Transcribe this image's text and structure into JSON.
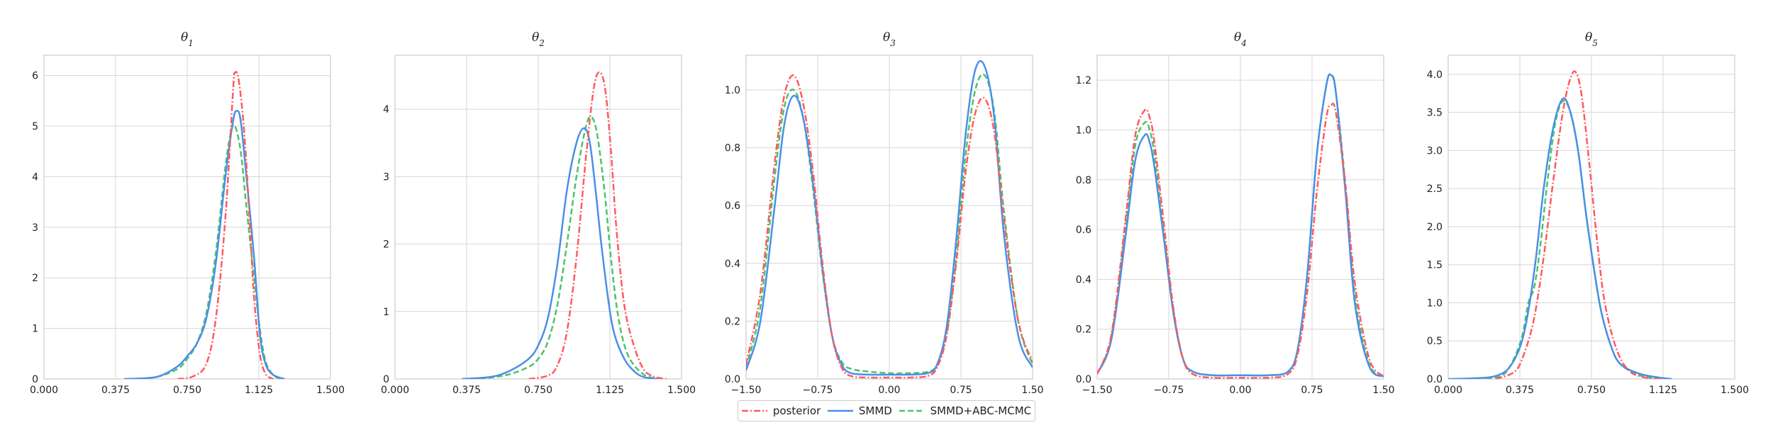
{
  "chart_data": [
    {
      "type": "line",
      "title": "θ1",
      "xlim": [
        0.0,
        1.5
      ],
      "ylim": [
        0,
        6.4
      ],
      "xticks": [
        "0.000",
        "0.375",
        "0.750",
        "1.125",
        "1.500"
      ],
      "xtick_values": [
        0,
        0.375,
        0.75,
        1.125,
        1.5
      ],
      "yticks": [
        "0",
        "1",
        "2",
        "3",
        "4",
        "5",
        "6"
      ],
      "ytick_values": [
        0,
        1,
        2,
        3,
        4,
        5,
        6
      ],
      "grid": true,
      "series": [
        {
          "name": "posterior",
          "x": [
            0.7,
            0.78,
            0.85,
            0.9,
            0.95,
            0.99,
            1.0,
            1.02,
            1.05,
            1.08,
            1.1,
            1.13,
            1.16,
            1.2
          ],
          "y": [
            0,
            0.05,
            0.3,
            1.2,
            3.2,
            5.7,
            6.05,
            5.9,
            4.8,
            2.9,
            1.6,
            0.5,
            0.1,
            0
          ]
        },
        {
          "name": "SMMD",
          "x": [
            0.42,
            0.5,
            0.6,
            0.7,
            0.75,
            0.8,
            0.85,
            0.9,
            0.95,
            0.99,
            1.01,
            1.03,
            1.06,
            1.1,
            1.13,
            1.16,
            1.2,
            1.26
          ],
          "y": [
            0,
            0.01,
            0.05,
            0.25,
            0.45,
            0.7,
            1.2,
            2.3,
            4.0,
            5.1,
            5.3,
            5.1,
            4.0,
            2.4,
            0.9,
            0.3,
            0.08,
            0
          ]
        },
        {
          "name": "SMMD+ABC-MCMC",
          "x": [
            0.5,
            0.6,
            0.7,
            0.75,
            0.8,
            0.85,
            0.9,
            0.95,
            0.98,
            1.0,
            1.03,
            1.06,
            1.1,
            1.13,
            1.16,
            1.2,
            1.24
          ],
          "y": [
            0,
            0.05,
            0.2,
            0.4,
            0.7,
            1.3,
            2.5,
            4.2,
            4.9,
            5.0,
            4.5,
            3.4,
            2.0,
            1.0,
            0.35,
            0.08,
            0
          ]
        }
      ]
    },
    {
      "type": "line",
      "title": "θ2",
      "xlim": [
        0.0,
        1.5
      ],
      "ylim": [
        0,
        4.8
      ],
      "xticks": [
        "0.000",
        "0.375",
        "0.750",
        "1.125",
        "1.500"
      ],
      "xtick_values": [
        0,
        0.375,
        0.75,
        1.125,
        1.5
      ],
      "yticks": [
        "0",
        "1",
        "2",
        "3",
        "4"
      ],
      "ytick_values": [
        0,
        1,
        2,
        3,
        4
      ],
      "grid": true,
      "series": [
        {
          "name": "posterior",
          "x": [
            0.7,
            0.8,
            0.85,
            0.9,
            0.95,
            1.0,
            1.04,
            1.07,
            1.1,
            1.13,
            1.16,
            1.2,
            1.25,
            1.3,
            1.35,
            1.42
          ],
          "y": [
            0,
            0.05,
            0.2,
            0.7,
            1.8,
            3.3,
            4.3,
            4.55,
            4.3,
            3.4,
            2.2,
            1.1,
            0.5,
            0.15,
            0.04,
            0
          ]
        },
        {
          "name": "SMMD",
          "x": [
            0.35,
            0.5,
            0.6,
            0.7,
            0.75,
            0.8,
            0.85,
            0.9,
            0.95,
            0.99,
            1.02,
            1.05,
            1.08,
            1.12,
            1.15,
            1.2,
            1.25,
            1.3,
            1.38
          ],
          "y": [
            0,
            0.03,
            0.12,
            0.3,
            0.5,
            0.9,
            1.7,
            2.8,
            3.5,
            3.72,
            3.5,
            2.8,
            2.0,
            1.1,
            0.65,
            0.3,
            0.12,
            0.03,
            0
          ]
        },
        {
          "name": "SMMD+ABC-MCMC",
          "x": [
            0.4,
            0.5,
            0.6,
            0.7,
            0.75,
            0.8,
            0.85,
            0.9,
            0.95,
            1.0,
            1.03,
            1.06,
            1.1,
            1.13,
            1.17,
            1.22,
            1.3,
            1.38
          ],
          "y": [
            0,
            0.02,
            0.07,
            0.18,
            0.3,
            0.55,
            1.1,
            2.0,
            3.0,
            3.75,
            3.88,
            3.6,
            2.7,
            1.8,
            0.9,
            0.35,
            0.07,
            0
          ]
        }
      ]
    },
    {
      "type": "line",
      "title": "θ3",
      "xlim": [
        -1.5,
        1.5
      ],
      "ylim": [
        0,
        1.12
      ],
      "xticks": [
        "−1.50",
        "−0.75",
        "0.00",
        "0.75",
        "1.50"
      ],
      "xtick_values": [
        -1.5,
        -0.75,
        0,
        0.75,
        1.5
      ],
      "yticks": [
        "0.0",
        "0.2",
        "0.4",
        "0.6",
        "0.8",
        "1.0"
      ],
      "ytick_values": [
        0,
        0.2,
        0.4,
        0.6,
        0.8,
        1.0
      ],
      "grid": true,
      "series": [
        {
          "name": "posterior",
          "x": [
            -1.5,
            -1.35,
            -1.2,
            -1.1,
            -1.0,
            -0.9,
            -0.8,
            -0.7,
            -0.6,
            -0.5,
            -0.4,
            -0.2,
            0.0,
            0.2,
            0.4,
            0.5,
            0.6,
            0.7,
            0.8,
            0.9,
            1.0,
            1.1,
            1.2,
            1.35,
            1.5
          ],
          "y": [
            0.05,
            0.3,
            0.75,
            0.98,
            1.05,
            0.95,
            0.72,
            0.4,
            0.15,
            0.04,
            0.01,
            0.005,
            0.005,
            0.005,
            0.01,
            0.04,
            0.15,
            0.4,
            0.72,
            0.92,
            0.97,
            0.85,
            0.55,
            0.2,
            0.06
          ]
        },
        {
          "name": "SMMD",
          "x": [
            -1.5,
            -1.35,
            -1.2,
            -1.1,
            -1.0,
            -0.9,
            -0.8,
            -0.7,
            -0.6,
            -0.5,
            -0.4,
            -0.2,
            0.0,
            0.2,
            0.4,
            0.5,
            0.6,
            0.7,
            0.8,
            0.9,
            1.0,
            1.1,
            1.2,
            1.35,
            1.5
          ],
          "y": [
            0.03,
            0.2,
            0.6,
            0.88,
            0.98,
            0.9,
            0.68,
            0.38,
            0.15,
            0.05,
            0.02,
            0.015,
            0.015,
            0.015,
            0.02,
            0.05,
            0.18,
            0.48,
            0.85,
            1.07,
            1.08,
            0.9,
            0.5,
            0.15,
            0.04
          ]
        },
        {
          "name": "SMMD+ABC-MCMC",
          "x": [
            -1.5,
            -1.35,
            -1.2,
            -1.1,
            -1.0,
            -0.9,
            -0.8,
            -0.7,
            -0.6,
            -0.5,
            -0.4,
            -0.2,
            0.0,
            0.2,
            0.4,
            0.5,
            0.6,
            0.7,
            0.8,
            0.9,
            1.0,
            1.1,
            1.2,
            1.35,
            1.5
          ],
          "y": [
            0.04,
            0.25,
            0.7,
            0.94,
            1.0,
            0.9,
            0.66,
            0.37,
            0.15,
            0.06,
            0.035,
            0.025,
            0.02,
            0.02,
            0.025,
            0.05,
            0.16,
            0.42,
            0.78,
            1.0,
            1.05,
            0.92,
            0.58,
            0.2,
            0.05
          ]
        }
      ]
    },
    {
      "type": "line",
      "title": "θ4",
      "xlim": [
        -1.5,
        1.5
      ],
      "ylim": [
        0,
        1.3
      ],
      "xticks": [
        "−1.50",
        "−0.75",
        "0.00",
        "0.75",
        "1.50"
      ],
      "xtick_values": [
        -1.5,
        -0.75,
        0,
        0.75,
        1.5
      ],
      "yticks": [
        "0.0",
        "0.2",
        "0.4",
        "0.6",
        "0.8",
        "1.0",
        "1.2"
      ],
      "ytick_values": [
        0,
        0.2,
        0.4,
        0.6,
        0.8,
        1.0,
        1.2
      ],
      "grid": true,
      "series": [
        {
          "name": "posterior",
          "x": [
            -1.5,
            -1.35,
            -1.2,
            -1.1,
            -1.0,
            -0.95,
            -0.9,
            -0.8,
            -0.7,
            -0.6,
            -0.5,
            -0.3,
            0.0,
            0.3,
            0.5,
            0.6,
            0.7,
            0.8,
            0.9,
            0.95,
            1.0,
            1.1,
            1.2,
            1.35,
            1.5
          ],
          "y": [
            0.02,
            0.18,
            0.65,
            0.98,
            1.08,
            1.05,
            0.95,
            0.62,
            0.28,
            0.08,
            0.02,
            0.005,
            0.005,
            0.005,
            0.02,
            0.1,
            0.35,
            0.75,
            1.05,
            1.1,
            1.07,
            0.78,
            0.38,
            0.08,
            0.01
          ]
        },
        {
          "name": "SMMD",
          "x": [
            -1.5,
            -1.35,
            -1.2,
            -1.1,
            -1.0,
            -0.95,
            -0.9,
            -0.8,
            -0.7,
            -0.6,
            -0.5,
            -0.3,
            0.0,
            0.3,
            0.5,
            0.6,
            0.7,
            0.8,
            0.9,
            0.95,
            1.0,
            1.1,
            1.2,
            1.35,
            1.5
          ],
          "y": [
            0.02,
            0.16,
            0.58,
            0.88,
            0.98,
            0.95,
            0.85,
            0.56,
            0.26,
            0.08,
            0.03,
            0.015,
            0.015,
            0.015,
            0.03,
            0.12,
            0.42,
            0.9,
            1.18,
            1.22,
            1.15,
            0.75,
            0.3,
            0.05,
            0.01
          ]
        },
        {
          "name": "SMMD+ABC-MCMC",
          "x": [
            -1.5,
            -1.35,
            -1.2,
            -1.1,
            -1.0,
            -0.95,
            -0.9,
            -0.8,
            -0.7,
            -0.6,
            -0.5,
            -0.3,
            0.0,
            0.3,
            0.5,
            0.6,
            0.7,
            0.8,
            0.9,
            0.95,
            1.0,
            1.1,
            1.2,
            1.35,
            1.5
          ],
          "y": [
            0.02,
            0.17,
            0.62,
            0.94,
            1.03,
            1.0,
            0.9,
            0.58,
            0.27,
            0.08,
            0.03,
            0.015,
            0.015,
            0.015,
            0.03,
            0.12,
            0.42,
            0.9,
            1.18,
            1.22,
            1.15,
            0.78,
            0.33,
            0.06,
            0.01
          ]
        }
      ]
    },
    {
      "type": "line",
      "title": "θ5",
      "xlim": [
        0.0,
        1.5
      ],
      "ylim": [
        0,
        4.25
      ],
      "xticks": [
        "0.000",
        "0.375",
        "0.750",
        "1.125",
        "1.500"
      ],
      "xtick_values": [
        0,
        0.375,
        0.75,
        1.125,
        1.5
      ],
      "yticks": [
        "0.0",
        "0.5",
        "1.0",
        "1.5",
        "2.0",
        "2.5",
        "3.0",
        "3.5",
        "4.0"
      ],
      "ytick_values": [
        0,
        0.5,
        1.0,
        1.5,
        2.0,
        2.5,
        3.0,
        3.5,
        4.0
      ],
      "grid": true,
      "series": [
        {
          "name": "posterior",
          "x": [
            0.25,
            0.35,
            0.4,
            0.45,
            0.5,
            0.55,
            0.6,
            0.64,
            0.67,
            0.7,
            0.74,
            0.78,
            0.82,
            0.88,
            0.95,
            1.05,
            1.12
          ],
          "y": [
            0,
            0.1,
            0.35,
            0.8,
            1.6,
            2.6,
            3.5,
            3.95,
            4.02,
            3.7,
            2.8,
            1.8,
            1.0,
            0.4,
            0.1,
            0.01,
            0
          ]
        },
        {
          "name": "SMMD",
          "x": [
            0.0,
            0.15,
            0.25,
            0.32,
            0.38,
            0.42,
            0.46,
            0.5,
            0.55,
            0.6,
            0.64,
            0.68,
            0.72,
            0.76,
            0.8,
            0.85,
            0.9,
            1.0,
            1.1,
            1.17
          ],
          "y": [
            0,
            0.01,
            0.04,
            0.15,
            0.45,
            0.9,
            1.6,
            2.5,
            3.3,
            3.68,
            3.5,
            3.0,
            2.2,
            1.5,
            0.9,
            0.45,
            0.2,
            0.07,
            0.02,
            0
          ]
        },
        {
          "name": "SMMD+ABC-MCMC",
          "x": [
            0.2,
            0.3,
            0.38,
            0.42,
            0.45,
            0.48,
            0.52,
            0.56,
            0.6,
            0.64,
            0.68,
            0.72,
            0.76,
            0.8,
            0.85,
            0.9,
            1.0,
            1.1
          ],
          "y": [
            0,
            0.08,
            0.5,
            1.0,
            1.2,
            1.7,
            2.6,
            3.35,
            3.65,
            3.5,
            3.0,
            2.2,
            1.5,
            0.9,
            0.45,
            0.2,
            0.05,
            0
          ]
        }
      ]
    }
  ],
  "legend": {
    "location": "bottom-center",
    "entries": [
      "posterior",
      "SMMD",
      "SMMD+ABC-MCMC"
    ]
  },
  "colors": {
    "posterior": "#ff5a5f",
    "SMMD": "#4a8fe7",
    "SMMD+ABC-MCMC": "#4cc36a",
    "grid": "#d6d6d6",
    "axis": "#cccccc",
    "text": "#222222"
  }
}
